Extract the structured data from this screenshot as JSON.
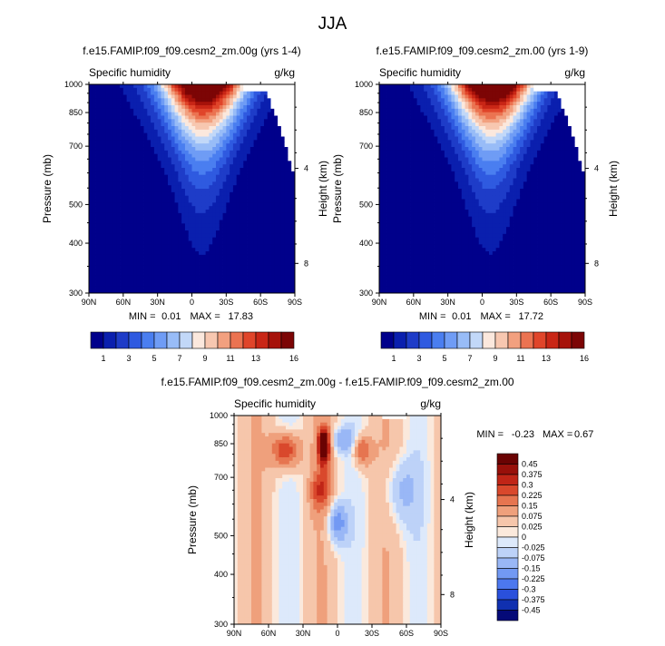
{
  "page_title": "JJA",
  "colors": {
    "abs_palette": [
      "#00008b",
      "#0a1fae",
      "#1e3cc8",
      "#2f5ae0",
      "#4a7ef0",
      "#6f9cf5",
      "#98bcf7",
      "#c2d8f8",
      "#fbe8dd",
      "#f7c7b0",
      "#f2a07f",
      "#eb7351",
      "#e0452a",
      "#c92616",
      "#a6120a",
      "#7c0505"
    ],
    "diff_palette": [
      "#050a78",
      "#1030b0",
      "#2a50dc",
      "#4c78ef",
      "#7299f3",
      "#99b7f6",
      "#bdd2f8",
      "#dde9fb",
      "#fbe9dc",
      "#f6c6ab",
      "#efa07c",
      "#e67550",
      "#d9482c",
      "#c02517",
      "#98100a",
      "#6a0303"
    ]
  },
  "chart_data": [
    {
      "type": "heatmap",
      "panel": "top-left",
      "title": "f.e15.FAMIP.f09_f09.cesm2_zm.00g (yrs 1-4)",
      "left_label": "Specific humidity",
      "units": "g/kg",
      "ylabel": "Pressure (mb)",
      "y2label": "Height (km)",
      "x_ticks": [
        "90N",
        "60N",
        "30N",
        "0",
        "30S",
        "60S",
        "90S"
      ],
      "y_ticks": [
        300,
        400,
        500,
        700,
        850,
        1000
      ],
      "y2_ticks": [
        8,
        4
      ],
      "ylim": [
        1000,
        300
      ],
      "xlim": [
        90,
        -90
      ],
      "stats": {
        "min_label": "MIN =",
        "min": "0.01",
        "max_label": "MAX =",
        "max": "17.83"
      },
      "contour_levels": [
        1,
        2,
        3,
        4,
        5,
        6,
        7,
        8,
        9,
        10,
        11,
        12,
        13,
        14,
        15,
        16
      ],
      "colorbar_labels": [
        "1",
        "3",
        "5",
        "7",
        "9",
        "11",
        "13",
        "16"
      ]
    },
    {
      "type": "heatmap",
      "panel": "top-right",
      "title": "f.e15.FAMIP.f09_f09.cesm2_zm.00 (yrs 1-9)",
      "left_label": "Specific humidity",
      "units": "g/kg",
      "ylabel": "Pressure (mb)",
      "y2label": "Height (km)",
      "x_ticks": [
        "90N",
        "60N",
        "30N",
        "0",
        "30S",
        "60S",
        "90S"
      ],
      "y_ticks": [
        300,
        400,
        500,
        700,
        850,
        1000
      ],
      "y2_ticks": [
        8,
        4
      ],
      "ylim": [
        1000,
        300
      ],
      "xlim": [
        90,
        -90
      ],
      "stats": {
        "min_label": "MIN =",
        "min": "0.01",
        "max_label": "MAX =",
        "max": "17.72"
      },
      "contour_levels": [
        1,
        2,
        3,
        4,
        5,
        6,
        7,
        8,
        9,
        10,
        11,
        12,
        13,
        14,
        15,
        16
      ],
      "colorbar_labels": [
        "1",
        "3",
        "5",
        "7",
        "9",
        "11",
        "13",
        "16"
      ]
    },
    {
      "type": "heatmap",
      "panel": "bottom",
      "title": "f.e15.FAMIP.f09_f09.cesm2_zm.00g - f.e15.FAMIP.f09_f09.cesm2_zm.00",
      "left_label": "Specific humidity",
      "units": "g/kg",
      "ylabel": "Pressure (mb)",
      "y2label": "Height (km)",
      "x_ticks": [
        "90N",
        "60N",
        "30N",
        "0",
        "30S",
        "60S",
        "90S"
      ],
      "y_ticks": [
        300,
        400,
        500,
        700,
        850,
        1000
      ],
      "y2_ticks": [
        8,
        4
      ],
      "ylim": [
        1000,
        300
      ],
      "xlim": [
        90,
        -90
      ],
      "stats": {
        "min_label": "MIN =",
        "min": "-0.23",
        "max_label": "MAX =",
        "max": "0.67"
      },
      "colorbar_labels": [
        "0.45",
        "0.375",
        "0.3",
        "0.225",
        "0.15",
        "0.075",
        "0.025",
        "0",
        "-0.025",
        "-0.075",
        "-0.15",
        "-0.225",
        "-0.3",
        "-0.375",
        "-0.45"
      ]
    }
  ]
}
